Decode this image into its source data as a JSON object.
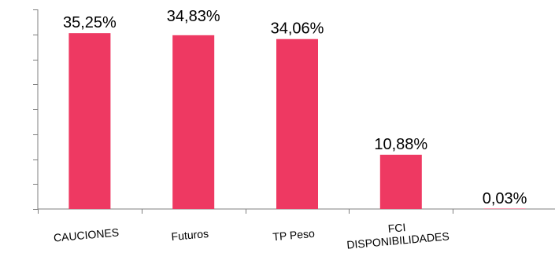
{
  "chart_data": {
    "type": "bar",
    "title": "",
    "xlabel": "",
    "ylabel": "",
    "categories": [
      [
        "CAUCIONES"
      ],
      [
        "Futuros"
      ],
      [
        "TP Peso"
      ],
      [
        "FCI",
        "DISPONIBILIDADES"
      ],
      [
        ""
      ]
    ],
    "values": [
      35.25,
      34.83,
      34.06,
      10.88,
      0.03
    ],
    "data_labels": [
      "35,25%",
      "34,83%",
      "34,06%",
      "10,88%",
      "0,03%"
    ],
    "ylim": [
      0,
      40
    ],
    "y_ticks": [
      0,
      5,
      10,
      15,
      20,
      25,
      30,
      35,
      40
    ],
    "grid": false,
    "legend": "none",
    "bar_color": "#ee3962"
  }
}
